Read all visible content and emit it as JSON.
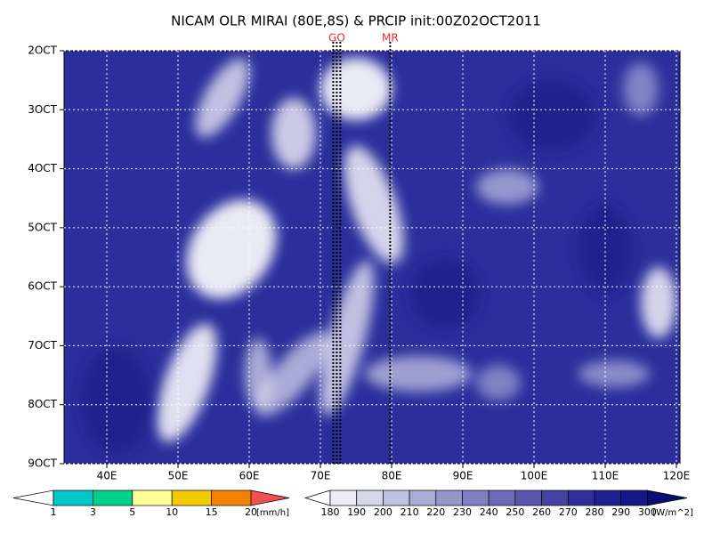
{
  "chart_data": {
    "type": "hovmoller",
    "title": "NICAM OLR MIRAI (80E,8S) & PRCIP init:00Z02OCT2011",
    "xlim": [
      34,
      120.5
    ],
    "ylim": [
      2,
      9
    ],
    "xticks": [
      {
        "value": 40,
        "label": "40E"
      },
      {
        "value": 50,
        "label": "50E"
      },
      {
        "value": 60,
        "label": "60E"
      },
      {
        "value": 70,
        "label": "70E"
      },
      {
        "value": 80,
        "label": "80E"
      },
      {
        "value": 90,
        "label": "90E"
      },
      {
        "value": 100,
        "label": "100E"
      },
      {
        "value": 110,
        "label": "110E"
      },
      {
        "value": 120,
        "label": "120E"
      }
    ],
    "yticks": [
      {
        "value": 2,
        "label": "2OCT"
      },
      {
        "value": 3,
        "label": "3OCT"
      },
      {
        "value": 4,
        "label": "4OCT"
      },
      {
        "value": 5,
        "label": "5OCT"
      },
      {
        "value": 6,
        "label": "6OCT"
      },
      {
        "value": 7,
        "label": "7OCT"
      },
      {
        "value": 8,
        "label": "8OCT"
      },
      {
        "value": 9,
        "label": "9OCT"
      }
    ],
    "grid": true,
    "field_color": "#2b2f9c",
    "markers": [
      {
        "label": "GO",
        "x": [
          71.8,
          72.3,
          72.8
        ]
      },
      {
        "label": "MR",
        "x": [
          79.8
        ]
      }
    ],
    "colorbars": [
      {
        "levels": [
          1,
          3,
          5,
          10,
          15,
          20
        ],
        "unit": "[mm/h]",
        "colors": [
          "#ffffff",
          "#00c8c8",
          "#00d08c",
          "#ffff9a",
          "#f2cc00",
          "#f28200",
          "#f05050"
        ]
      },
      {
        "levels": [
          180,
          190,
          200,
          210,
          220,
          230,
          240,
          250,
          260,
          270,
          280,
          290,
          300
        ],
        "unit": "[W/m^2]",
        "colors": [
          "#ffffff",
          "#ececf4",
          "#d6d8ea",
          "#c0c2e0",
          "#aaacd6",
          "#9496cc",
          "#7e80c2",
          "#6a6cb8",
          "#5658ae",
          "#4244a4",
          "#2e309a",
          "#1e2290",
          "#141886",
          "#0a0e70"
        ]
      }
    ]
  }
}
